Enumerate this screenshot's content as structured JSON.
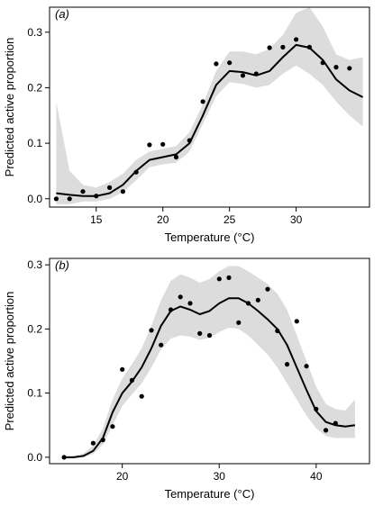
{
  "chart_data": [
    {
      "type": "line",
      "panel_label": "(a)",
      "xlabel": "Temperature (°C)",
      "ylabel": "Predicted active proportion",
      "xlim": [
        11.5,
        35.5
      ],
      "ylim": [
        -0.015,
        0.345
      ],
      "xticks": [
        15,
        20,
        25,
        30
      ],
      "yticks": [
        0.0,
        0.1,
        0.2,
        0.3
      ],
      "ytick_labels": [
        "0.0",
        "0.1",
        "0.2",
        "0.3"
      ],
      "grid": false,
      "band_color": "#dcdcdc",
      "line_color": "#000000",
      "point_color": "#000000",
      "points": {
        "x": [
          12,
          13,
          14,
          15,
          16,
          17,
          18,
          19,
          20,
          21,
          22,
          23,
          24,
          25,
          26,
          27,
          28,
          29,
          30,
          31,
          32,
          33,
          34
        ],
        "y": [
          0.0,
          0.0,
          0.013,
          0.005,
          0.02,
          0.013,
          0.048,
          0.097,
          0.098,
          0.075,
          0.105,
          0.175,
          0.243,
          0.245,
          0.222,
          0.225,
          0.272,
          0.273,
          0.287,
          0.273,
          0.245,
          0.237,
          0.235
        ]
      },
      "fit": {
        "x": [
          12,
          13,
          14,
          15,
          16,
          17,
          18,
          19,
          20,
          21,
          22,
          23,
          24,
          25,
          26,
          27,
          28,
          29,
          30,
          31,
          32,
          33,
          34,
          35
        ],
        "y": [
          0.01,
          0.007,
          0.005,
          0.005,
          0.01,
          0.025,
          0.05,
          0.07,
          0.075,
          0.08,
          0.1,
          0.15,
          0.205,
          0.23,
          0.228,
          0.222,
          0.23,
          0.255,
          0.277,
          0.272,
          0.25,
          0.215,
          0.195,
          0.183
        ]
      },
      "band": {
        "x": [
          12,
          13,
          14,
          15,
          16,
          17,
          18,
          19,
          20,
          21,
          22,
          23,
          24,
          25,
          26,
          27,
          28,
          29,
          30,
          31,
          32,
          33,
          34,
          35
        ],
        "lower": [
          -0.01,
          -0.01,
          -0.005,
          -0.005,
          0.0,
          0.012,
          0.033,
          0.057,
          0.062,
          0.065,
          0.085,
          0.135,
          0.185,
          0.21,
          0.207,
          0.2,
          0.205,
          0.225,
          0.24,
          0.225,
          0.205,
          0.175,
          0.15,
          0.13
        ],
        "upper": [
          0.175,
          0.05,
          0.025,
          0.02,
          0.03,
          0.045,
          0.07,
          0.085,
          0.09,
          0.095,
          0.12,
          0.17,
          0.23,
          0.265,
          0.265,
          0.26,
          0.27,
          0.295,
          0.335,
          0.345,
          0.31,
          0.26,
          0.25,
          0.255
        ]
      }
    },
    {
      "type": "line",
      "panel_label": "(b)",
      "xlabel": "Temperature (°C)",
      "ylabel": "Predicted active proportion",
      "xlim": [
        12.5,
        45.5
      ],
      "ylim": [
        -0.01,
        0.31
      ],
      "xticks": [
        20,
        30,
        40
      ],
      "yticks": [
        0.0,
        0.1,
        0.2,
        0.3
      ],
      "ytick_labels": [
        "0.0",
        "0.1",
        "0.2",
        "0.3"
      ],
      "grid": false,
      "band_color": "#dcdcdc",
      "line_color": "#000000",
      "point_color": "#000000",
      "points": {
        "x": [
          14,
          17,
          18,
          19,
          20,
          21,
          22,
          23,
          24,
          25,
          26,
          27,
          28,
          29,
          30,
          31,
          32,
          33,
          34,
          35,
          36,
          37,
          38,
          39,
          40,
          41,
          42
        ],
        "y": [
          0.0,
          0.022,
          0.027,
          0.048,
          0.137,
          0.12,
          0.095,
          0.198,
          0.175,
          0.23,
          0.25,
          0.24,
          0.193,
          0.19,
          0.278,
          0.28,
          0.21,
          0.24,
          0.245,
          0.262,
          0.197,
          0.145,
          0.212,
          0.142,
          0.075,
          0.042,
          0.053
        ]
      },
      "fit": {
        "x": [
          14,
          15,
          16,
          17,
          18,
          19,
          20,
          21,
          22,
          23,
          24,
          25,
          26,
          27,
          28,
          29,
          30,
          31,
          32,
          33,
          34,
          35,
          36,
          37,
          38,
          39,
          40,
          41,
          42,
          43,
          44
        ],
        "y": [
          0.0,
          0.0,
          0.002,
          0.01,
          0.03,
          0.07,
          0.1,
          0.118,
          0.14,
          0.17,
          0.205,
          0.228,
          0.235,
          0.23,
          0.223,
          0.228,
          0.24,
          0.248,
          0.248,
          0.24,
          0.228,
          0.215,
          0.2,
          0.175,
          0.14,
          0.105,
          0.072,
          0.055,
          0.05,
          0.048,
          0.05
        ]
      },
      "band": {
        "x": [
          14,
          15,
          16,
          17,
          18,
          19,
          20,
          21,
          22,
          23,
          24,
          25,
          26,
          27,
          28,
          29,
          30,
          31,
          32,
          33,
          34,
          35,
          36,
          37,
          38,
          39,
          40,
          41,
          42,
          43,
          44
        ],
        "lower": [
          0.0,
          0.0,
          0.0,
          0.005,
          0.02,
          0.05,
          0.08,
          0.098,
          0.115,
          0.14,
          0.168,
          0.185,
          0.19,
          0.188,
          0.183,
          0.186,
          0.195,
          0.202,
          0.2,
          0.19,
          0.175,
          0.16,
          0.14,
          0.115,
          0.09,
          0.065,
          0.045,
          0.033,
          0.03,
          0.03,
          0.03
        ],
        "upper": [
          0.0,
          0.002,
          0.006,
          0.018,
          0.045,
          0.09,
          0.123,
          0.145,
          0.17,
          0.205,
          0.245,
          0.275,
          0.285,
          0.28,
          0.272,
          0.278,
          0.29,
          0.298,
          0.298,
          0.29,
          0.28,
          0.27,
          0.255,
          0.23,
          0.19,
          0.15,
          0.11,
          0.083,
          0.075,
          0.073,
          0.09
        ]
      }
    }
  ]
}
